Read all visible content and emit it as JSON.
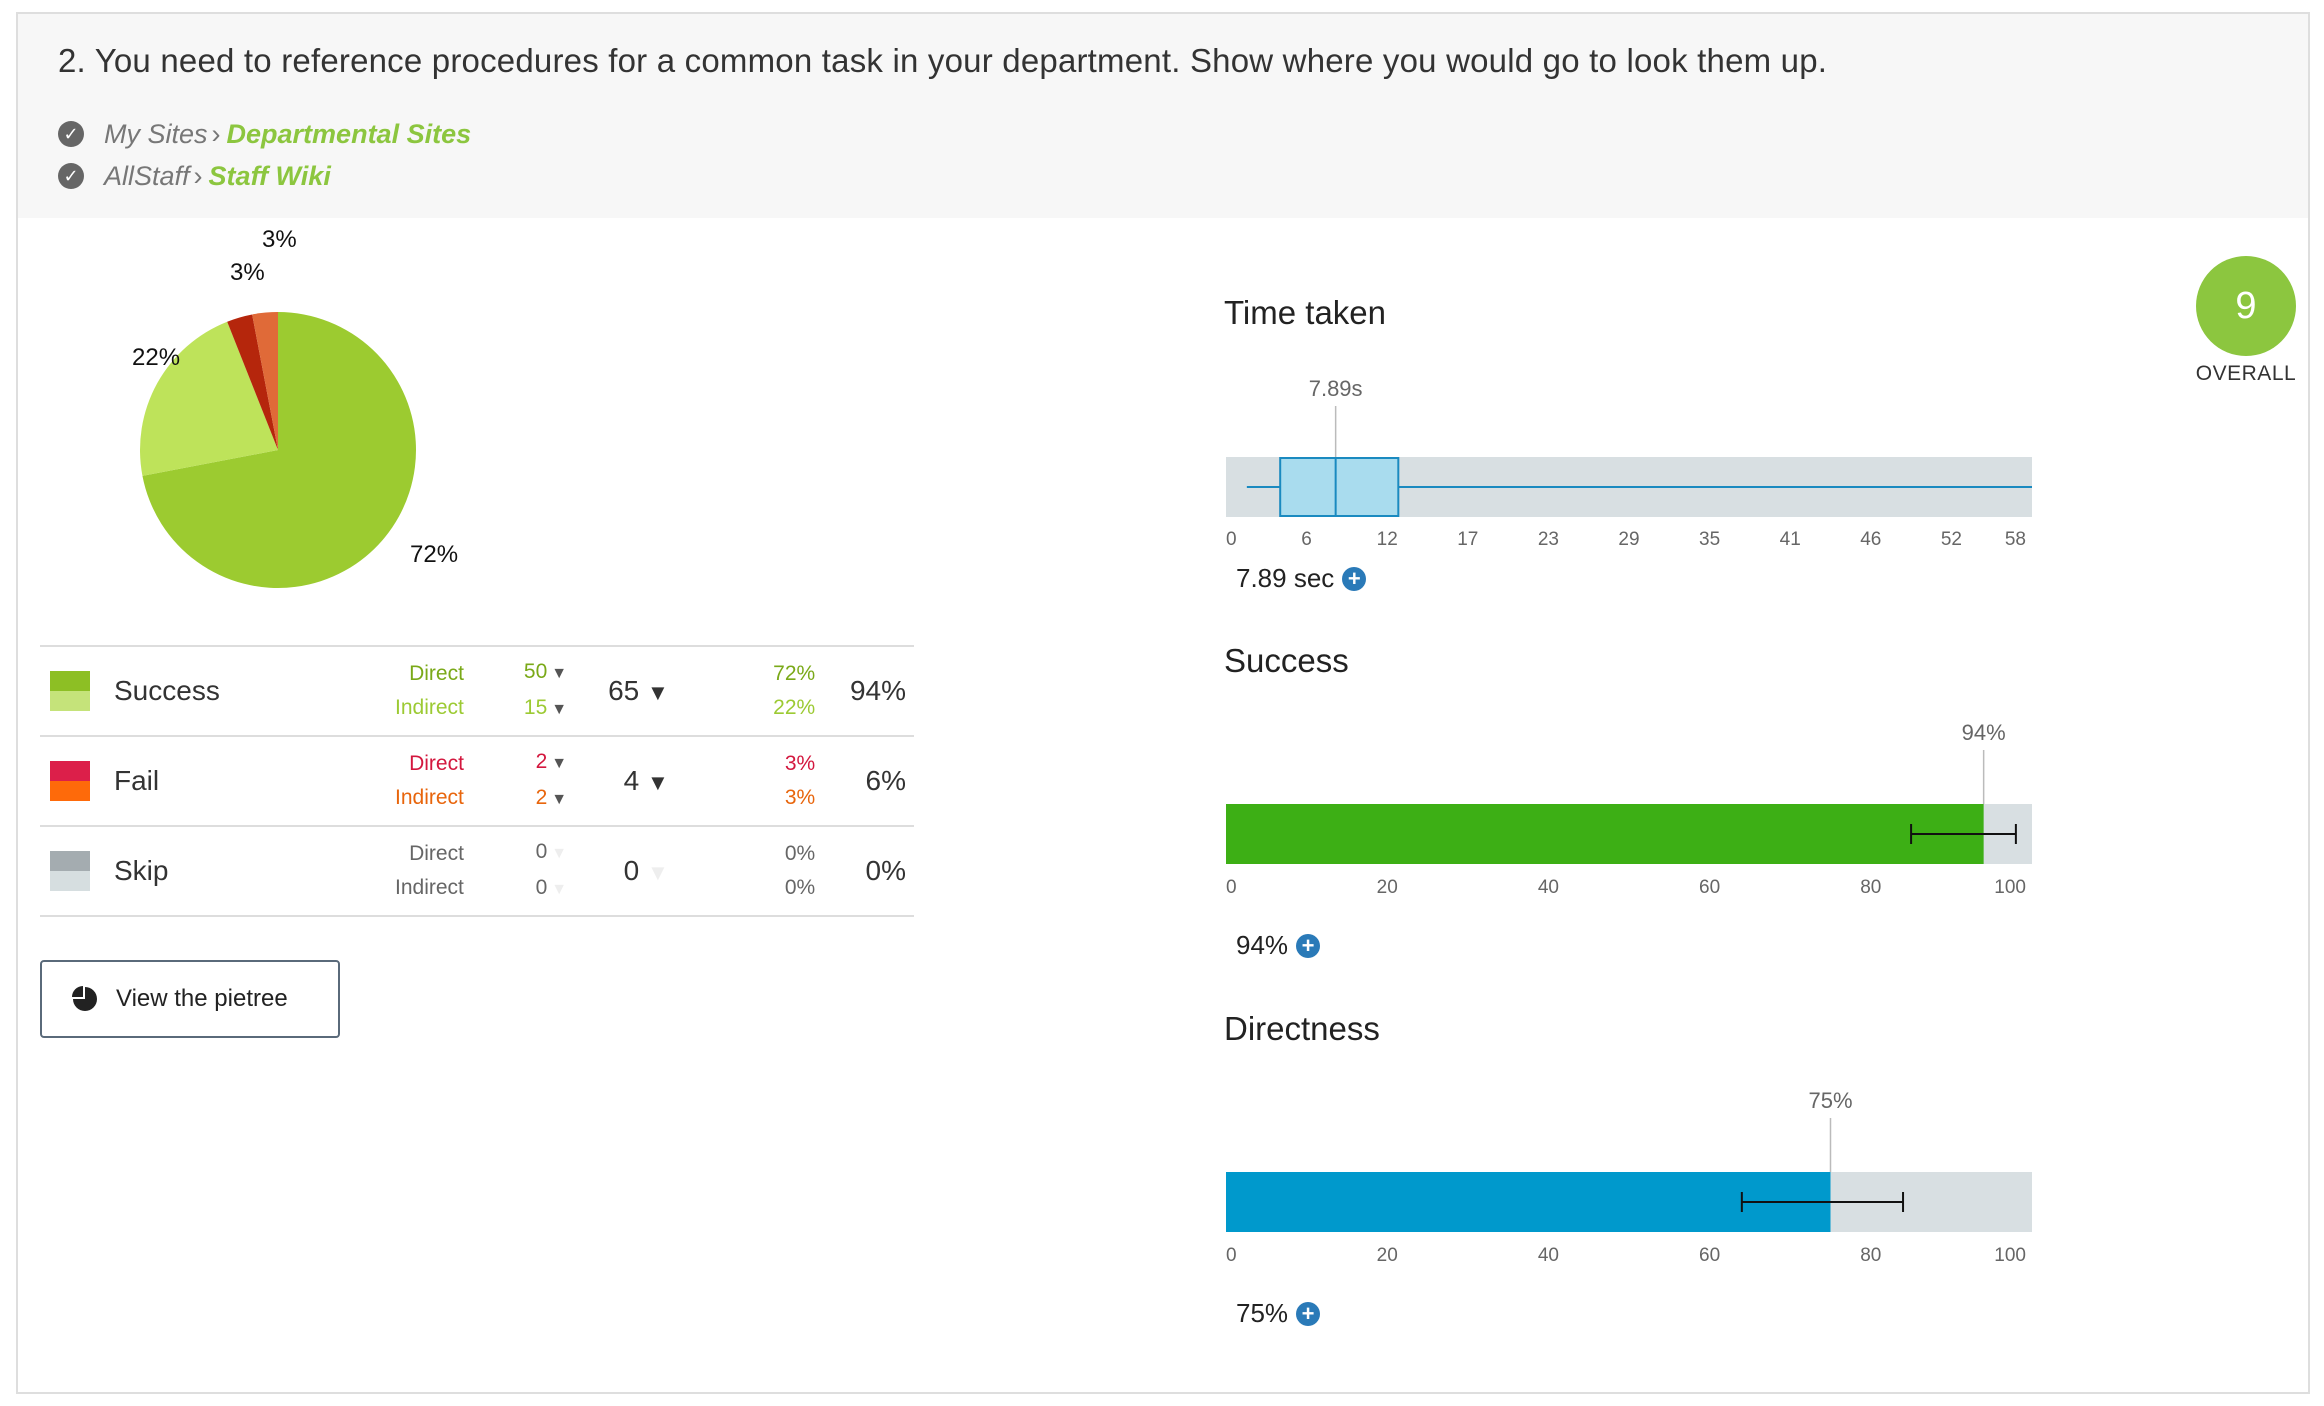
{
  "question": "2. You need to reference procedures for a common task in your department. Show where you would go to look them up.",
  "correct_paths": [
    {
      "path": "My Sites",
      "target": "Departmental Sites"
    },
    {
      "path": "AllStaff",
      "target": "Staff Wiki"
    }
  ],
  "pie": {
    "labels": [
      "72%",
      "22%",
      "3%",
      "3%"
    ],
    "values": [
      72,
      22,
      3,
      3
    ],
    "colors": [
      "#9ccb30",
      "#bee35a",
      "#b5260c",
      "#e06a38"
    ]
  },
  "results": {
    "success": {
      "label": "Success",
      "colors": [
        "#8dbf24",
        "#c5e37a"
      ],
      "direct_label": "Direct",
      "indirect_label": "Indirect",
      "direct": "50",
      "indirect": "15",
      "total": "65",
      "direct_pct": "72%",
      "indirect_pct": "22%",
      "pct": "94%",
      "direct_color": "#7aa918",
      "indirect_color": "#9cca33"
    },
    "fail": {
      "label": "Fail",
      "colors": [
        "#dc1f4a",
        "#fe6a0a"
      ],
      "direct_label": "Direct",
      "indirect_label": "Indirect",
      "direct": "2",
      "indirect": "2",
      "total": "4",
      "direct_pct": "3%",
      "indirect_pct": "3%",
      "pct": "6%",
      "direct_color": "#d3173e",
      "indirect_color": "#e8650c"
    },
    "skip": {
      "label": "Skip",
      "colors": [
        "#a4acb0",
        "#d6dee0"
      ],
      "direct_label": "Direct",
      "indirect_label": "Indirect",
      "direct": "0",
      "indirect": "0",
      "total": "0",
      "direct_pct": "0%",
      "indirect_pct": "0%",
      "pct": "0%",
      "direct_color": "#666666",
      "indirect_color": "#666666"
    }
  },
  "pietree_button": "View the pietree",
  "time_taken": {
    "title": "Time taken",
    "median_label": "7.89s",
    "readout": "7.89 sec",
    "ticks": [
      "0",
      "6",
      "12",
      "17",
      "23",
      "29",
      "35",
      "41",
      "46",
      "52",
      "58"
    ],
    "axis_max": 58,
    "whisker_low": 1.5,
    "q1": 3.9,
    "median": 7.89,
    "q3": 12.4,
    "whisker_high": 58
  },
  "success_chart": {
    "title": "Success",
    "value": 94,
    "label": "94%",
    "readout": "94%",
    "err_low": 85,
    "err_high": 98,
    "ticks": [
      "0",
      "20",
      "40",
      "60",
      "80",
      "100"
    ],
    "color": "#3daf15"
  },
  "directness_chart": {
    "title": "Directness",
    "value": 75,
    "label": "75%",
    "readout": "75%",
    "err_low": 64,
    "err_high": 84,
    "ticks": [
      "0",
      "20",
      "40",
      "60",
      "80",
      "100"
    ],
    "color": "#0099cc"
  },
  "overall": {
    "score": "9",
    "label": "OVERALL"
  }
}
